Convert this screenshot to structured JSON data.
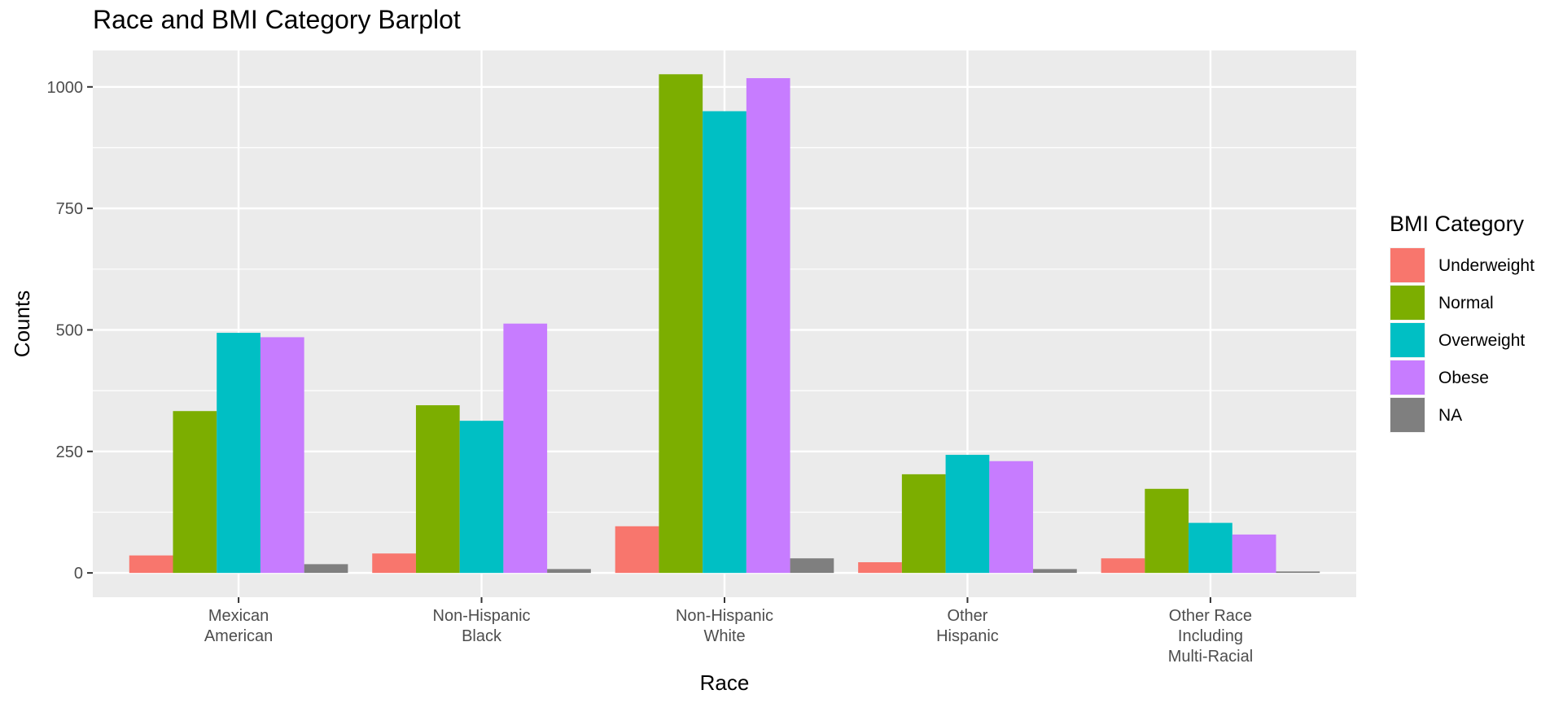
{
  "chart_data": {
    "type": "bar",
    "title": "Race and BMI Category Barplot",
    "xlabel": "Race",
    "ylabel": "Counts",
    "legend_title": "BMI Category",
    "legend_position": "right",
    "grid": true,
    "ylim": [
      -50,
      1075
    ],
    "yticks": [
      0,
      250,
      500,
      750,
      1000
    ],
    "categories": [
      [
        "Mexican",
        "American"
      ],
      [
        "Non-Hispanic",
        "Black"
      ],
      [
        "Non-Hispanic",
        "White"
      ],
      [
        "Other",
        "Hispanic"
      ],
      [
        "Other Race",
        "Including",
        "Multi-Racial"
      ]
    ],
    "series": [
      {
        "name": "Underweight",
        "color": "#F8766D",
        "values": [
          36,
          40,
          96,
          22,
          30
        ]
      },
      {
        "name": "Normal",
        "color": "#7CAE00",
        "values": [
          333,
          345,
          1026,
          203,
          173
        ]
      },
      {
        "name": "Overweight",
        "color": "#00BFC4",
        "values": [
          494,
          313,
          950,
          243,
          103
        ]
      },
      {
        "name": "Obese",
        "color": "#C77CFF",
        "values": [
          485,
          513,
          1018,
          230,
          79
        ]
      },
      {
        "name": "NA",
        "color": "#7F7F7F",
        "values": [
          18,
          8,
          30,
          8,
          3
        ]
      }
    ]
  }
}
